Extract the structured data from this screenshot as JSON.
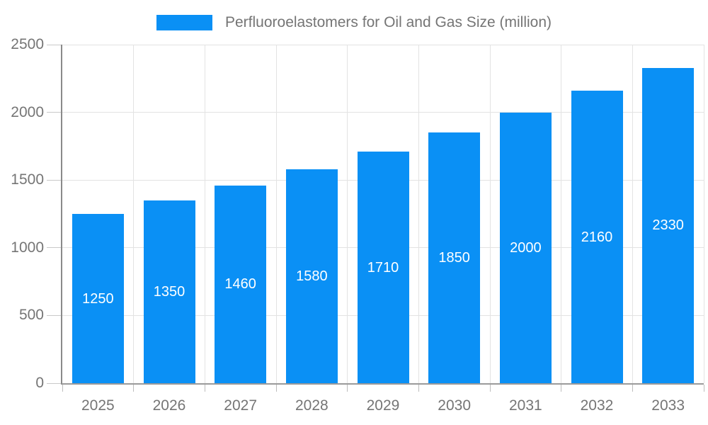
{
  "chart_data": {
    "type": "bar",
    "title": "Perfluoroelastomers for Oil and Gas Size (million)",
    "categories": [
      "2025",
      "2026",
      "2027",
      "2028",
      "2029",
      "2030",
      "2031",
      "2032",
      "2033"
    ],
    "values": [
      1250,
      1350,
      1460,
      1580,
      1710,
      1850,
      2000,
      2160,
      2330
    ],
    "ylim": [
      0,
      2500
    ],
    "yticks": [
      0,
      500,
      1000,
      1500,
      2000,
      2500
    ],
    "grid": true,
    "legend_position": "top",
    "colors": {
      "bar": "#0a90f5",
      "value_label": "#ffffff",
      "axis_label": "#757575",
      "gridline": "#e3e3e3"
    }
  }
}
